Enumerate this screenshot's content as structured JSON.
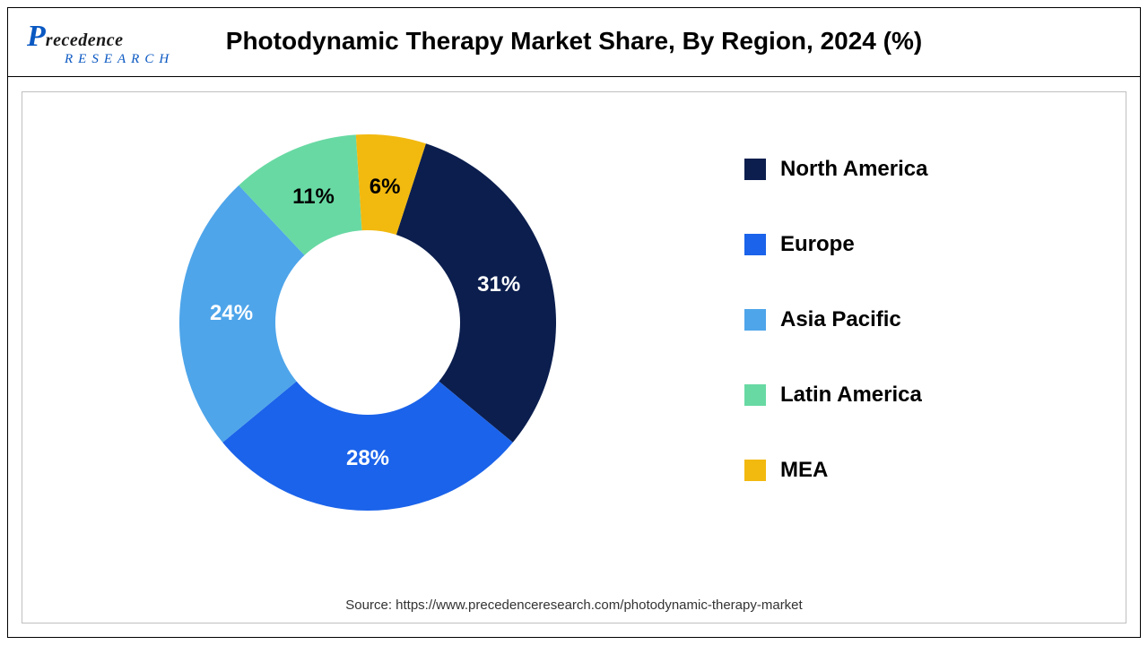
{
  "logo": {
    "initial": "P",
    "word": "recedence",
    "sub": "RESEARCH"
  },
  "title": "Photodynamic Therapy Market Share, By Region, 2024 (%)",
  "chart": {
    "type": "donut",
    "inner_radius_ratio": 0.45,
    "background_color": "#ffffff",
    "border_color": "#bfbfbf",
    "label_fontsize": 24,
    "label_fontweight": 700,
    "start_angle_deg": 18,
    "legend_fontsize": 24,
    "legend_position": "right",
    "slices": [
      {
        "label": "North America",
        "value": 31,
        "color": "#0b1e4e",
        "label_color": "#ffffff"
      },
      {
        "label": "Europe",
        "value": 28,
        "color": "#1b63ea",
        "label_color": "#ffffff"
      },
      {
        "label": "Asia Pacific",
        "value": 24,
        "color": "#4ea5ea",
        "label_color": "#ffffff"
      },
      {
        "label": "Latin America",
        "value": 11,
        "color": "#68d9a3",
        "label_color": "#000000"
      },
      {
        "label": "MEA",
        "value": 6,
        "color": "#f2b90f",
        "label_color": "#000000"
      }
    ]
  },
  "source": "Source: https://www.precedenceresearch.com/photodynamic-therapy-market"
}
